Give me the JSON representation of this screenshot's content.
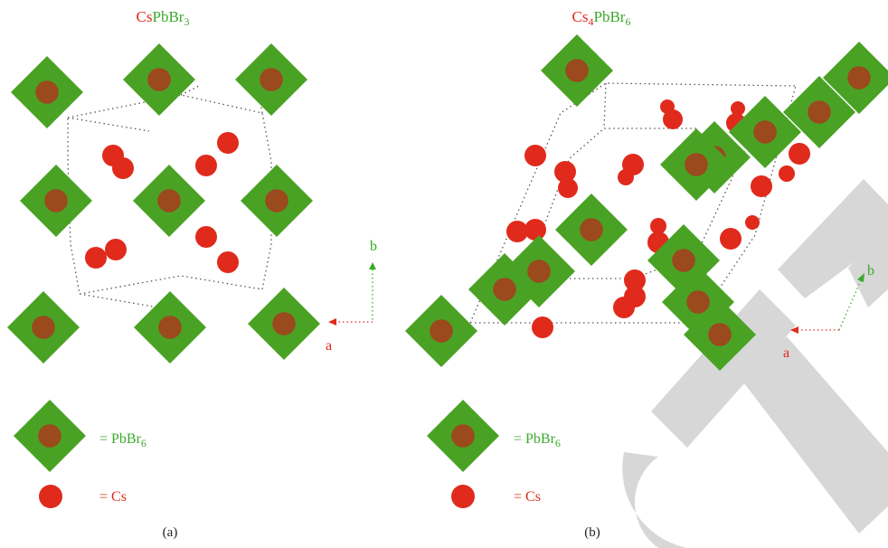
{
  "colors": {
    "octahedron": "#4aa224",
    "pb_core": "#9a4a1c",
    "cs": "#e02a1c",
    "cell_line": "#555555",
    "axis_a": "#e02a1c",
    "axis_b": "#3aaa2a",
    "watermark": "#d7d7d7",
    "caption": "#222222"
  },
  "panels": [
    {
      "title": {
        "cs": "Cs",
        "pb": "PbBr",
        "sub": "3"
      },
      "axes": {
        "a": "a",
        "b": "b"
      },
      "legend": {
        "oct_label": "= PbBr",
        "oct_sub": "6",
        "cs_label": "= Cs"
      },
      "caption": "(a)"
    },
    {
      "title": {
        "cs": "Cs",
        "cs_sub": "4",
        "pb": "PbBr",
        "sub": "6"
      },
      "axes": {
        "a": "a",
        "b": "b"
      },
      "legend": {
        "oct_label": "= PbBr",
        "oct_sub": "6",
        "cs_label": "= Cs"
      },
      "caption": "(b)"
    }
  ]
}
